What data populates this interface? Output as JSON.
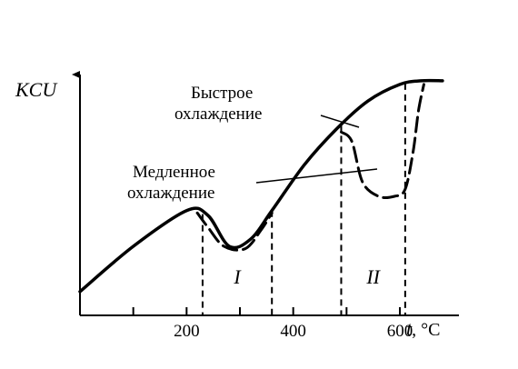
{
  "chart_data": {
    "type": "line",
    "title": "",
    "ylabel": "KCU",
    "xlabel": {
      "var": "t",
      "unit": ", °C"
    },
    "x_ticks": [
      {
        "value": 100,
        "label": ""
      },
      {
        "value": 200,
        "label": "200"
      },
      {
        "value": 300,
        "label": ""
      },
      {
        "value": 400,
        "label": "400"
      },
      {
        "value": 500,
        "label": ""
      },
      {
        "value": 600,
        "label": "600"
      }
    ],
    "xlim": [
      0,
      750
    ],
    "ylim": [
      0,
      10
    ],
    "series": [
      {
        "name": "Быстрое охлаждение",
        "style": "solid",
        "x": [
          0,
          100,
          200,
          240,
          280,
          320,
          360,
          420,
          480,
          540,
          600,
          640,
          680
        ],
        "y": [
          1.0,
          2.9,
          4.4,
          4.2,
          2.9,
          3.2,
          4.4,
          6.3,
          7.8,
          9.0,
          9.7,
          9.85,
          9.85
        ]
      },
      {
        "name": "Медленное охлаждение",
        "style": "dashed",
        "x": [
          490,
          510,
          530,
          560,
          590,
          610,
          625,
          635,
          645
        ],
        "y": [
          7.7,
          7.3,
          5.6,
          5.0,
          5.0,
          5.3,
          6.9,
          8.6,
          9.7
        ]
      },
      {
        "name": "",
        "style": "dashed",
        "x": [
          220,
          240,
          270,
          310,
          340,
          360
        ],
        "y": [
          4.3,
          3.7,
          2.9,
          2.8,
          3.6,
          4.3
        ]
      }
    ],
    "annotations": [
      {
        "text": "Быстрое",
        "target": "Быстрое охлаждение"
      },
      {
        "text": "охлаждение",
        "target": "Быстрое охлаждение"
      },
      {
        "text": "Медленное",
        "target": "Медленное охлаждение"
      },
      {
        "text": "охлаждение",
        "target": "Медленное охлаждение"
      }
    ],
    "intervals": [
      {
        "label": "I",
        "from": 230,
        "to": 360
      },
      {
        "label": "II",
        "from": 490,
        "to": 610
      }
    ],
    "grid": false,
    "legend": "none"
  }
}
